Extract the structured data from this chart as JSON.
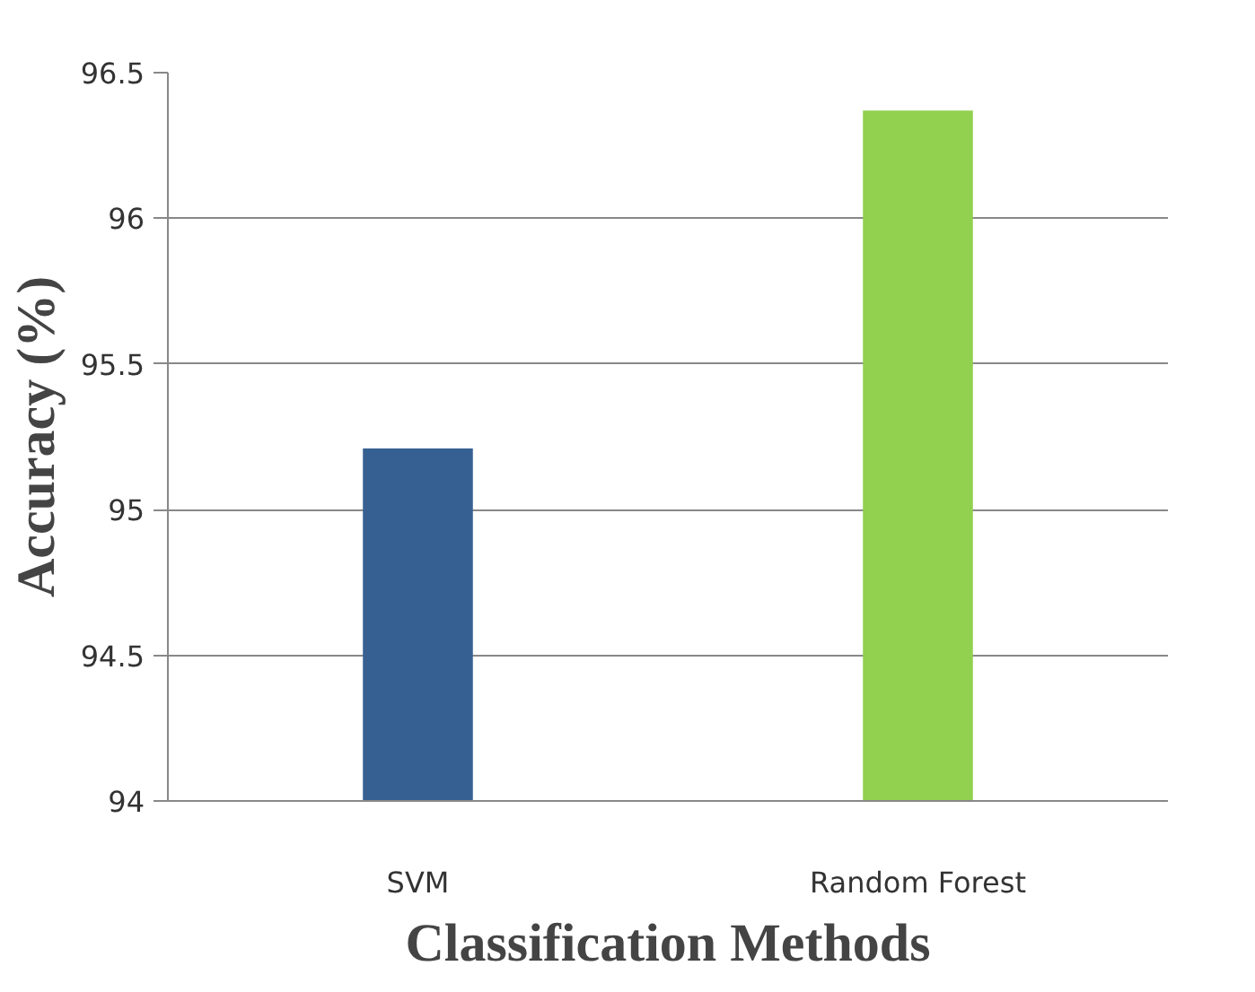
{
  "chart_data": {
    "type": "bar",
    "xlabel": "Classification Methods",
    "ylabel": "Accuracy (%)",
    "categories": [
      "SVM",
      "Random Forest"
    ],
    "values": [
      95.21,
      96.37
    ],
    "colors": [
      "#376092",
      "#92d050"
    ],
    "ylim": [
      94,
      96.5
    ],
    "yticks": [
      94,
      94.5,
      95,
      95.5,
      96,
      96.5
    ],
    "grid": "y"
  }
}
